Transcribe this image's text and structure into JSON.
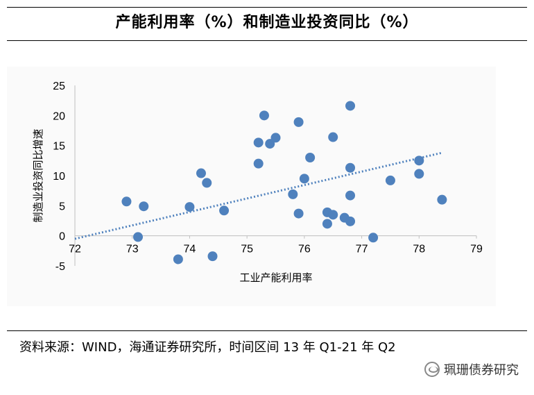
{
  "header": {
    "title": "产能利用率（%）和制造业投资同比（%）"
  },
  "footer": {
    "source": "资料来源：WIND，海通证券研究所，时间区间 13 年 Q1-21 年 Q2",
    "watermark": "珮珊债券研究"
  },
  "chart_data": {
    "type": "scatter",
    "title": "产能利用率（%）和制造业投资同比（%）",
    "xlabel": "工业产能利用率",
    "ylabel": "制造业投资同比增速",
    "xlim": [
      72,
      79
    ],
    "ylim": [
      -5,
      25
    ],
    "xticks": [
      "72",
      "73",
      "74",
      "75",
      "76",
      "77",
      "78",
      "79"
    ],
    "yticks": [
      "25",
      "20",
      "15",
      "10",
      "5",
      "0",
      "-5"
    ],
    "grid": false,
    "legend": "none",
    "point_color": "#4f81bd",
    "trend_color": "#4f81bd",
    "trendline": {
      "x": [
        72,
        78.4
      ],
      "y": [
        -0.5,
        13.8
      ]
    },
    "points": [
      {
        "x": 72.9,
        "y": 5.7
      },
      {
        "x": 73.1,
        "y": -0.2
      },
      {
        "x": 73.2,
        "y": 4.9
      },
      {
        "x": 73.8,
        "y": -3.9
      },
      {
        "x": 74.0,
        "y": 4.8
      },
      {
        "x": 74.2,
        "y": 10.4
      },
      {
        "x": 74.3,
        "y": 8.8
      },
      {
        "x": 74.4,
        "y": -3.4
      },
      {
        "x": 74.6,
        "y": 4.2
      },
      {
        "x": 75.2,
        "y": 15.5
      },
      {
        "x": 75.2,
        "y": 12.0
      },
      {
        "x": 75.3,
        "y": 20.0
      },
      {
        "x": 75.4,
        "y": 15.3
      },
      {
        "x": 75.5,
        "y": 16.3
      },
      {
        "x": 75.8,
        "y": 6.9
      },
      {
        "x": 75.9,
        "y": 18.9
      },
      {
        "x": 75.9,
        "y": 3.7
      },
      {
        "x": 76.0,
        "y": 9.5
      },
      {
        "x": 76.1,
        "y": 13.0
      },
      {
        "x": 76.4,
        "y": 3.9
      },
      {
        "x": 76.4,
        "y": 2.0
      },
      {
        "x": 76.5,
        "y": 16.4
      },
      {
        "x": 76.5,
        "y": 3.5
      },
      {
        "x": 76.7,
        "y": 3.0
      },
      {
        "x": 76.8,
        "y": 21.6
      },
      {
        "x": 76.8,
        "y": 11.3
      },
      {
        "x": 76.8,
        "y": 6.7
      },
      {
        "x": 76.8,
        "y": 2.4
      },
      {
        "x": 77.2,
        "y": -0.3
      },
      {
        "x": 77.5,
        "y": 9.2
      },
      {
        "x": 78.0,
        "y": 12.5
      },
      {
        "x": 78.0,
        "y": 10.3
      },
      {
        "x": 78.4,
        "y": 6.0
      }
    ]
  }
}
